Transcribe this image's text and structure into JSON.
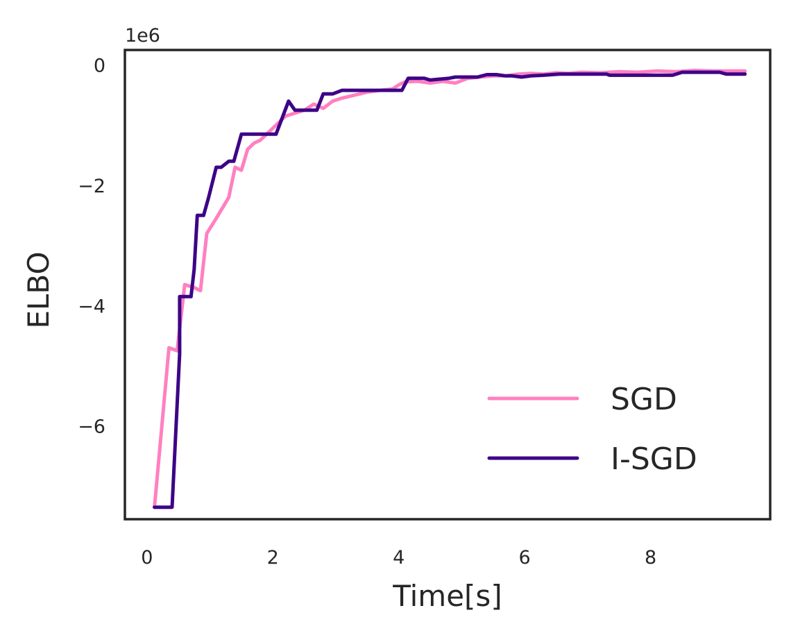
{
  "chart_data": {
    "type": "line",
    "title": "",
    "xlabel": "Time[s]",
    "ylabel": "ELBO",
    "offset_label": "1e6",
    "xlim": [
      -0.35,
      9.9
    ],
    "ylim": [
      -7.55,
      0.25
    ],
    "xticks": [
      0,
      2,
      4,
      6,
      8
    ],
    "xtick_labels": [
      "0",
      "2",
      "4",
      "6",
      "8"
    ],
    "yticks": [
      0,
      -2,
      -4,
      -6
    ],
    "ytick_labels": [
      "0",
      "−2",
      "−4",
      "−6"
    ],
    "grid": false,
    "legend_position": "bottom-right",
    "series": [
      {
        "name": "SGD",
        "color": "#ff80c0",
        "x": [
          0.12,
          0.22,
          0.35,
          0.48,
          0.6,
          0.75,
          0.85,
          0.95,
          1.1,
          1.3,
          1.4,
          1.5,
          1.6,
          1.7,
          1.8,
          2.0,
          2.2,
          2.35,
          2.5,
          2.65,
          2.8,
          2.95,
          3.1,
          3.3,
          3.5,
          3.7,
          3.9,
          4.0,
          4.1,
          4.3,
          4.5,
          4.7,
          4.9,
          5.1,
          5.3,
          5.5,
          5.7,
          5.9,
          6.1,
          6.3,
          6.5,
          6.7,
          6.9,
          7.2,
          7.5,
          7.8,
          8.1,
          8.4,
          8.7,
          9.0,
          9.3,
          9.5
        ],
        "y": [
          -7.35,
          -6.2,
          -4.7,
          -4.75,
          -3.65,
          -3.7,
          -3.75,
          -2.8,
          -2.55,
          -2.2,
          -1.7,
          -1.75,
          -1.4,
          -1.3,
          -1.25,
          -1.05,
          -0.85,
          -0.8,
          -0.75,
          -0.65,
          -0.72,
          -0.6,
          -0.55,
          -0.5,
          -0.45,
          -0.42,
          -0.4,
          -0.33,
          -0.28,
          -0.27,
          -0.3,
          -0.27,
          -0.3,
          -0.22,
          -0.2,
          -0.18,
          -0.18,
          -0.15,
          -0.14,
          -0.15,
          -0.13,
          -0.14,
          -0.12,
          -0.13,
          -0.11,
          -0.12,
          -0.1,
          -0.11,
          -0.09,
          -0.1,
          -0.1,
          -0.1
        ]
      },
      {
        "name": "I-SGD",
        "color": "#3d0387",
        "x": [
          0.12,
          0.4,
          0.52,
          0.52,
          0.7,
          0.75,
          0.8,
          0.9,
          0.98,
          1.1,
          1.18,
          1.3,
          1.38,
          1.5,
          1.68,
          1.85,
          2.05,
          2.25,
          2.35,
          2.5,
          2.7,
          2.8,
          2.95,
          3.1,
          3.3,
          3.5,
          3.7,
          3.9,
          4.05,
          4.15,
          4.4,
          4.5,
          4.7,
          4.8,
          4.9,
          5.1,
          5.25,
          5.4,
          5.55,
          5.7,
          5.8,
          5.95,
          6.1,
          6.3,
          6.55,
          6.8,
          7.0,
          7.3,
          7.35,
          7.55,
          7.8,
          8.1,
          8.35,
          8.5,
          8.8,
          9.0,
          9.1,
          9.2,
          9.5
        ],
        "y": [
          -7.35,
          -7.35,
          -4.8,
          -3.85,
          -3.85,
          -3.4,
          -2.5,
          -2.5,
          -2.2,
          -1.7,
          -1.7,
          -1.6,
          -1.6,
          -1.15,
          -1.15,
          -1.15,
          -1.15,
          -0.6,
          -0.75,
          -0.75,
          -0.75,
          -0.48,
          -0.48,
          -0.42,
          -0.42,
          -0.42,
          -0.42,
          -0.42,
          -0.42,
          -0.22,
          -0.22,
          -0.25,
          -0.23,
          -0.22,
          -0.2,
          -0.2,
          -0.2,
          -0.16,
          -0.16,
          -0.18,
          -0.18,
          -0.2,
          -0.18,
          -0.17,
          -0.15,
          -0.15,
          -0.15,
          -0.15,
          -0.17,
          -0.17,
          -0.17,
          -0.17,
          -0.17,
          -0.12,
          -0.12,
          -0.12,
          -0.12,
          -0.15,
          -0.15
        ]
      }
    ]
  }
}
